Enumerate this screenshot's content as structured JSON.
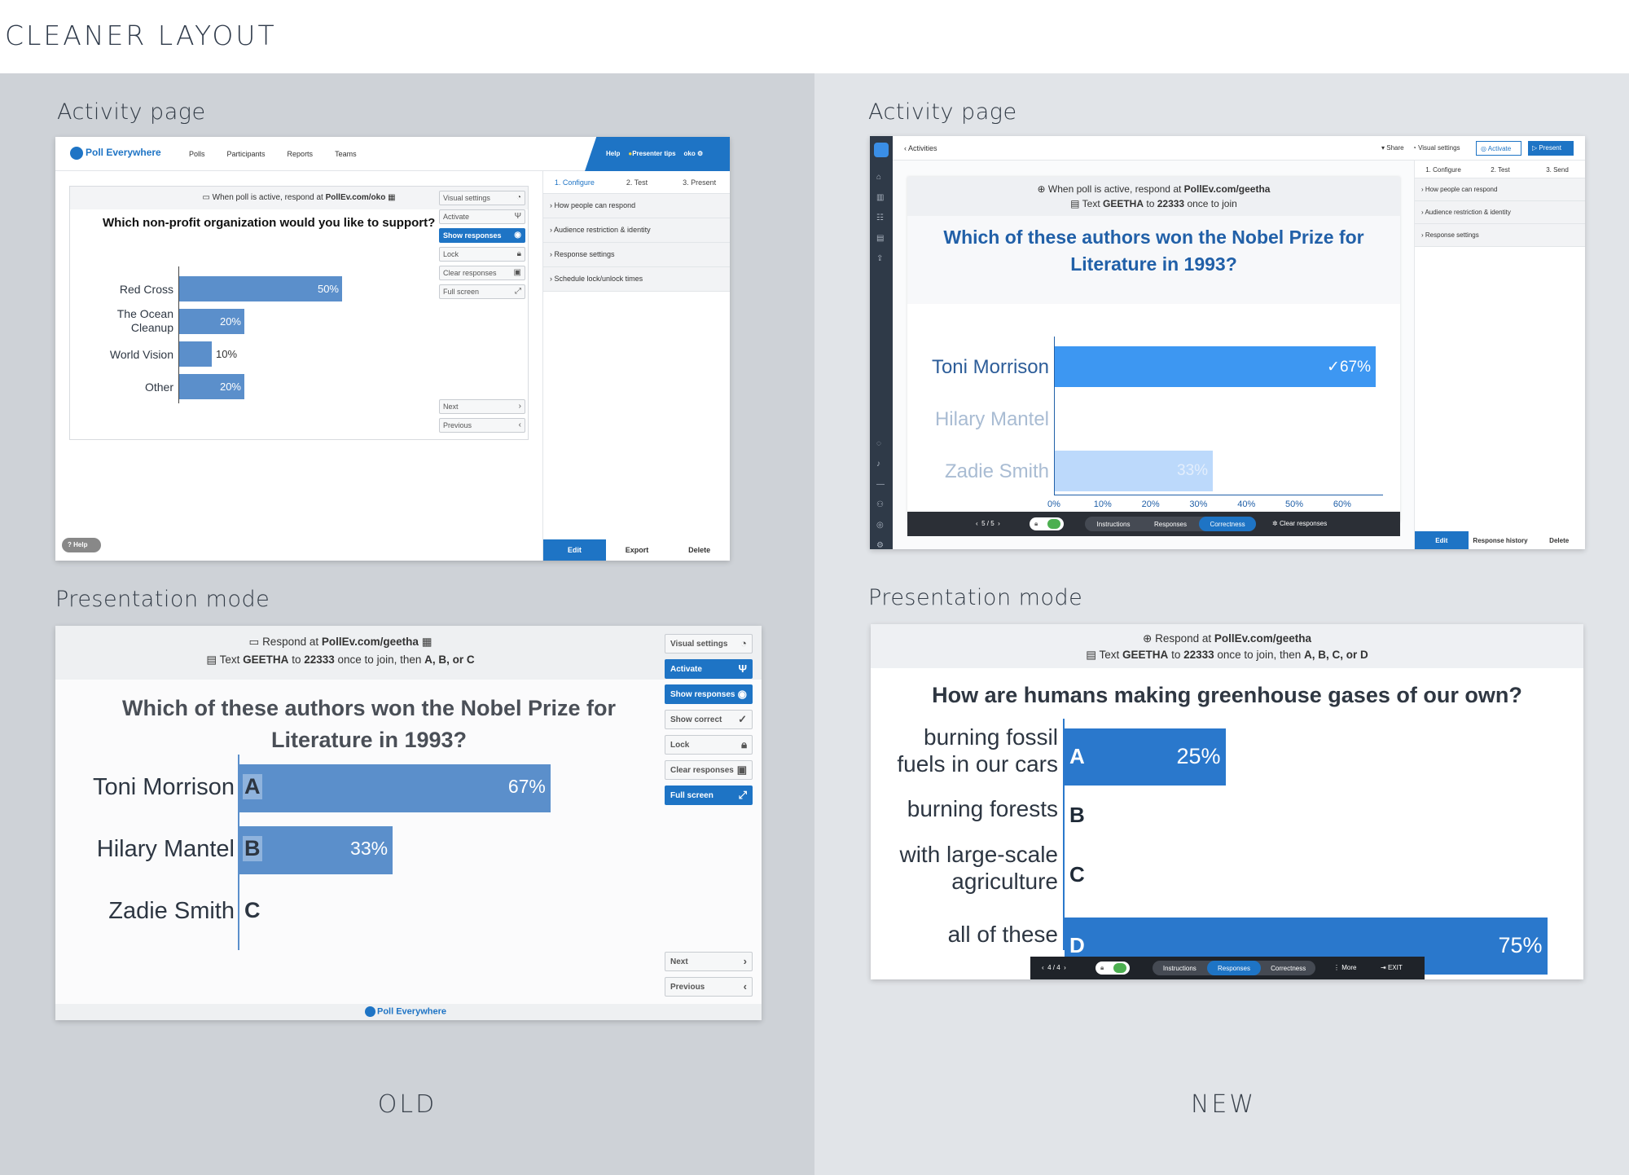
{
  "heading": "CLEANER LAYOUT",
  "old": {
    "caption": "OLD",
    "activity": {
      "label": "Activity page",
      "logo": "Poll Everywhere",
      "nav": [
        "Polls",
        "Participants",
        "Reports",
        "Teams"
      ],
      "help": "Help",
      "presenter_tips": "Presenter tips",
      "user": "oko",
      "respond_prefix": "When poll is active, respond at",
      "respond_url": "PollEv.com/oko",
      "question": "Which non-profit organization would you like to support?",
      "controls": [
        "Visual settings",
        "Activate",
        "Show responses",
        "Lock",
        "Clear responses",
        "Full screen"
      ],
      "next": "Next",
      "previous": "Previous",
      "steps": [
        "1. Configure",
        "2. Test",
        "3. Present"
      ],
      "settings": [
        "How people can respond",
        "Audience restriction & identity",
        "Response settings",
        "Schedule lock/unlock times"
      ],
      "footer_tabs": [
        "Edit",
        "Export",
        "Delete"
      ],
      "help_button": "Help",
      "chart_data": {
        "type": "bar",
        "categories": [
          "Red Cross",
          "The Ocean Cleanup",
          "World Vision",
          "Other"
        ],
        "values": [
          50,
          20,
          10,
          20
        ],
        "value_labels": [
          "50%",
          "20%",
          "10%",
          "20%"
        ],
        "color": "#5b8fcb"
      }
    },
    "presentation": {
      "label": "Presentation mode",
      "respond_prefix": "Respond at",
      "respond_url": "PollEv.com/geetha",
      "text_line_prefix": "Text",
      "text_keyword": "GEETHA",
      "text_to": "to",
      "text_number": "22333",
      "text_suffix": "once to join, then",
      "text_options": "A, B, or C",
      "question": "Which of these authors won the Nobel Prize for Literature in 1993?",
      "controls": [
        "Visual settings",
        "Activate",
        "Show responses",
        "Show correct",
        "Lock",
        "Clear responses",
        "Full screen"
      ],
      "next": "Next",
      "previous": "Previous",
      "logo": "Poll Everywhere",
      "chart_data": {
        "type": "bar",
        "categories": [
          "Toni Morrison",
          "Hilary Mantel",
          "Zadie Smith"
        ],
        "letters": [
          "A",
          "B",
          "C"
        ],
        "values": [
          67,
          33,
          0
        ],
        "value_labels": [
          "67%",
          "33%",
          ""
        ],
        "color": "#5b8fcb"
      }
    }
  },
  "new": {
    "caption": "NEW",
    "activity": {
      "label": "Activity page",
      "breadcrumb": "Activities",
      "share": "Share",
      "visual_settings": "Visual settings",
      "activate": "Activate",
      "present": "Present",
      "respond_prefix": "When poll is active, respond at",
      "respond_url": "PollEv.com/geetha",
      "text_line_prefix": "Text",
      "text_keyword": "GEETHA",
      "text_to": "to",
      "text_number": "22333",
      "text_suffix": "once to join",
      "question": "Which of these authors won the Nobel Prize for Literature in 1993?",
      "steps": [
        "1. Configure",
        "2. Test",
        "3. Send"
      ],
      "settings": [
        "How people can respond",
        "Audience restriction & identity",
        "Response settings"
      ],
      "footer_tabs": [
        "Edit",
        "Response history",
        "Delete"
      ],
      "pager": "5 / 5",
      "toolbar_tabs": [
        "Instructions",
        "Responses",
        "Correctness"
      ],
      "clear_responses": "Clear responses",
      "chart_data": {
        "type": "bar",
        "categories": [
          "Toni Morrison",
          "Hilary Mantel",
          "Zadie Smith"
        ],
        "values": [
          67,
          0,
          33
        ],
        "value_labels": [
          "✓67%",
          "",
          "33%"
        ],
        "correct": [
          true,
          false,
          false
        ],
        "x_ticks": [
          "0%",
          "10%",
          "20%",
          "30%",
          "40%",
          "50%",
          "60%"
        ],
        "xlim": [
          0,
          67
        ],
        "colors": [
          "#3d97f2",
          "#bcd9fb",
          "#bcd9fb"
        ]
      }
    },
    "presentation": {
      "label": "Presentation mode",
      "respond_prefix": "Respond at",
      "respond_url": "PollEv.com/geetha",
      "text_line_prefix": "Text",
      "text_keyword": "GEETHA",
      "text_to": "to",
      "text_number": "22333",
      "text_suffix": "once to join, then",
      "text_options": "A, B, C, or D",
      "question": "How are humans making greenhouse gases of our own?",
      "pager": "4 / 4",
      "toolbar_tabs": [
        "Instructions",
        "Responses",
        "Correctness"
      ],
      "more": "More",
      "exit": "EXIT",
      "chart_data": {
        "type": "bar",
        "categories": [
          "burning fossil fuels in our cars",
          "burning forests",
          "with large-scale agriculture",
          "all of these"
        ],
        "letters": [
          "A",
          "B",
          "C",
          "D"
        ],
        "values": [
          25,
          0,
          0,
          75
        ],
        "value_labels": [
          "25%",
          "",
          "",
          "75%"
        ],
        "color": "#2a78cc"
      }
    }
  }
}
